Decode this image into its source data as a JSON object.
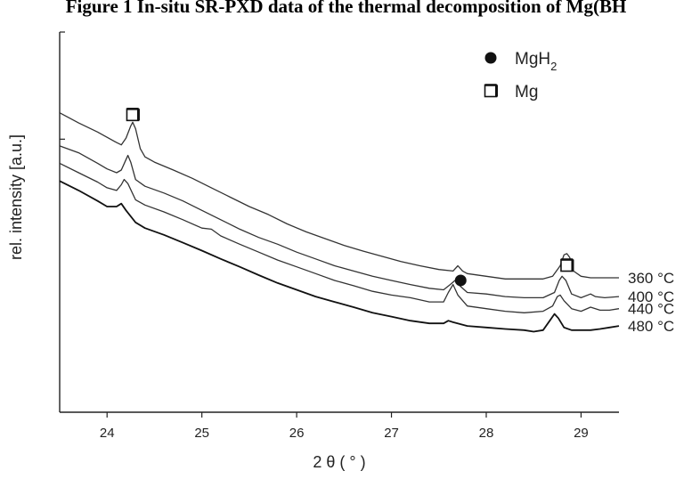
{
  "figure": {
    "title": "Figure 1 In-situ SR-PXD data of the thermal decomposition of Mg(BH"
  },
  "chart_data": {
    "type": "line",
    "xlabel": "2 θ  ( ° )",
    "ylabel": "rel. intensity [a.u.]",
    "xlim": [
      23.5,
      29.4
    ],
    "ylim": [
      0,
      100
    ],
    "x_ticks": [
      24,
      25,
      26,
      27,
      28,
      29
    ],
    "y_ticks": [
      72.5
    ],
    "grid": false,
    "legend_position": "top-right",
    "legend": [
      {
        "marker": "filled-circle",
        "label": "MgH",
        "subscript": "2"
      },
      {
        "marker": "open-square",
        "label": "Mg"
      }
    ],
    "annotations": [
      {
        "marker": "open-square",
        "x": 24.27,
        "y": 79,
        "meaning": "Mg"
      },
      {
        "marker": "filled-circle",
        "x": 27.73,
        "y": 35,
        "meaning": "MgH2"
      },
      {
        "marker": "open-square",
        "x": 28.85,
        "y": 39,
        "meaning": "Mg"
      }
    ],
    "series": [
      {
        "name": "360 °C",
        "color": "#333333",
        "points": [
          [
            23.5,
            79.5
          ],
          [
            23.7,
            76.8
          ],
          [
            23.9,
            74.4
          ],
          [
            24.0,
            73.0
          ],
          [
            24.1,
            71.6
          ],
          [
            24.15,
            71.0
          ],
          [
            24.2,
            72.8
          ],
          [
            24.25,
            76.0
          ],
          [
            24.27,
            77.0
          ],
          [
            24.3,
            75.3
          ],
          [
            24.35,
            70.0
          ],
          [
            24.4,
            67.8
          ],
          [
            24.5,
            66.4
          ],
          [
            24.7,
            64.3
          ],
          [
            24.9,
            62.1
          ],
          [
            25.1,
            59.6
          ],
          [
            25.3,
            57.1
          ],
          [
            25.5,
            54.6
          ],
          [
            25.7,
            52.5
          ],
          [
            25.9,
            50.0
          ],
          [
            26.1,
            47.9
          ],
          [
            26.3,
            46.1
          ],
          [
            26.5,
            44.3
          ],
          [
            26.7,
            42.8
          ],
          [
            26.9,
            41.4
          ],
          [
            27.1,
            40.0
          ],
          [
            27.3,
            38.9
          ],
          [
            27.5,
            37.9
          ],
          [
            27.65,
            37.5
          ],
          [
            27.7,
            38.9
          ],
          [
            27.75,
            37.5
          ],
          [
            27.8,
            36.8
          ],
          [
            28.0,
            36.1
          ],
          [
            28.2,
            35.4
          ],
          [
            28.4,
            35.4
          ],
          [
            28.6,
            35.4
          ],
          [
            28.7,
            36.1
          ],
          [
            28.78,
            38.9
          ],
          [
            28.82,
            41.8
          ],
          [
            28.85,
            42.1
          ],
          [
            28.88,
            41.1
          ],
          [
            28.92,
            37.5
          ],
          [
            29.0,
            36.1
          ],
          [
            29.1,
            35.7
          ],
          [
            29.2,
            35.7
          ],
          [
            29.3,
            35.7
          ],
          [
            29.4,
            35.7
          ]
        ]
      },
      {
        "name": "400 °C",
        "color": "#333333",
        "points": [
          [
            23.5,
            70.7
          ],
          [
            23.7,
            68.9
          ],
          [
            23.9,
            66.1
          ],
          [
            24.0,
            64.6
          ],
          [
            24.1,
            63.6
          ],
          [
            24.15,
            64.3
          ],
          [
            24.2,
            67.1
          ],
          [
            24.22,
            68.2
          ],
          [
            24.25,
            66.4
          ],
          [
            24.3,
            61.8
          ],
          [
            24.4,
            60.0
          ],
          [
            24.6,
            58.2
          ],
          [
            24.8,
            56.1
          ],
          [
            25.0,
            53.6
          ],
          [
            25.2,
            51.1
          ],
          [
            25.4,
            48.6
          ],
          [
            25.6,
            46.4
          ],
          [
            25.8,
            44.6
          ],
          [
            26.0,
            42.5
          ],
          [
            26.2,
            40.7
          ],
          [
            26.4,
            38.9
          ],
          [
            26.6,
            37.5
          ],
          [
            26.8,
            36.1
          ],
          [
            27.0,
            35.0
          ],
          [
            27.2,
            33.9
          ],
          [
            27.4,
            32.9
          ],
          [
            27.55,
            32.5
          ],
          [
            27.62,
            33.9
          ],
          [
            27.67,
            35.0
          ],
          [
            27.72,
            33.6
          ],
          [
            27.8,
            31.8
          ],
          [
            28.0,
            31.4
          ],
          [
            28.2,
            30.7
          ],
          [
            28.4,
            30.4
          ],
          [
            28.6,
            30.4
          ],
          [
            28.72,
            31.8
          ],
          [
            28.77,
            35.0
          ],
          [
            28.8,
            36.1
          ],
          [
            28.84,
            35.0
          ],
          [
            28.9,
            31.4
          ],
          [
            29.0,
            30.4
          ],
          [
            29.1,
            31.4
          ],
          [
            29.15,
            30.7
          ],
          [
            29.25,
            30.4
          ],
          [
            29.4,
            30.7
          ]
        ]
      },
      {
        "name": "440 °C",
        "color": "#333333",
        "points": [
          [
            23.5,
            66.1
          ],
          [
            23.7,
            63.6
          ],
          [
            23.9,
            61.1
          ],
          [
            24.0,
            59.6
          ],
          [
            24.1,
            58.9
          ],
          [
            24.15,
            60.4
          ],
          [
            24.18,
            61.8
          ],
          [
            24.22,
            60.7
          ],
          [
            24.3,
            56.4
          ],
          [
            24.4,
            55.0
          ],
          [
            24.6,
            53.2
          ],
          [
            24.8,
            51.1
          ],
          [
            25.0,
            48.9
          ],
          [
            25.1,
            48.6
          ],
          [
            25.2,
            46.8
          ],
          [
            25.4,
            44.6
          ],
          [
            25.6,
            42.5
          ],
          [
            25.8,
            40.4
          ],
          [
            26.0,
            38.6
          ],
          [
            26.2,
            36.8
          ],
          [
            26.4,
            35.0
          ],
          [
            26.6,
            33.6
          ],
          [
            26.8,
            32.1
          ],
          [
            27.0,
            31.1
          ],
          [
            27.2,
            30.4
          ],
          [
            27.4,
            29.3
          ],
          [
            27.55,
            29.3
          ],
          [
            27.6,
            31.8
          ],
          [
            27.65,
            33.9
          ],
          [
            27.7,
            31.1
          ],
          [
            27.8,
            28.2
          ],
          [
            28.0,
            27.5
          ],
          [
            28.2,
            26.8
          ],
          [
            28.4,
            26.4
          ],
          [
            28.6,
            26.8
          ],
          [
            28.7,
            28.2
          ],
          [
            28.75,
            30.7
          ],
          [
            28.78,
            31.1
          ],
          [
            28.82,
            29.6
          ],
          [
            28.9,
            27.5
          ],
          [
            29.0,
            26.8
          ],
          [
            29.1,
            27.9
          ],
          [
            29.2,
            27.1
          ],
          [
            29.3,
            27.1
          ],
          [
            29.4,
            27.5
          ]
        ]
      },
      {
        "name": "480 °C",
        "color": "#111111",
        "points": [
          [
            23.5,
            61.4
          ],
          [
            23.7,
            58.9
          ],
          [
            23.9,
            56.1
          ],
          [
            24.0,
            54.6
          ],
          [
            24.1,
            54.6
          ],
          [
            24.15,
            55.4
          ],
          [
            24.2,
            53.6
          ],
          [
            24.3,
            50.4
          ],
          [
            24.4,
            48.9
          ],
          [
            24.6,
            47.1
          ],
          [
            24.8,
            45.0
          ],
          [
            25.0,
            42.9
          ],
          [
            25.2,
            40.7
          ],
          [
            25.4,
            38.6
          ],
          [
            25.6,
            36.4
          ],
          [
            25.8,
            34.3
          ],
          [
            26.0,
            32.5
          ],
          [
            26.2,
            30.7
          ],
          [
            26.4,
            29.3
          ],
          [
            26.6,
            27.9
          ],
          [
            26.8,
            26.4
          ],
          [
            27.0,
            25.4
          ],
          [
            27.2,
            24.3
          ],
          [
            27.4,
            23.6
          ],
          [
            27.55,
            23.6
          ],
          [
            27.6,
            24.3
          ],
          [
            27.65,
            23.9
          ],
          [
            27.8,
            22.9
          ],
          [
            28.0,
            22.5
          ],
          [
            28.2,
            22.1
          ],
          [
            28.4,
            21.8
          ],
          [
            28.5,
            21.4
          ],
          [
            28.6,
            21.8
          ],
          [
            28.67,
            24.3
          ],
          [
            28.72,
            26.1
          ],
          [
            28.76,
            25.0
          ],
          [
            28.82,
            22.5
          ],
          [
            28.9,
            21.8
          ],
          [
            29.0,
            21.8
          ],
          [
            29.1,
            21.8
          ],
          [
            29.2,
            22.1
          ],
          [
            29.3,
            22.5
          ],
          [
            29.4,
            22.9
          ]
        ]
      }
    ]
  }
}
